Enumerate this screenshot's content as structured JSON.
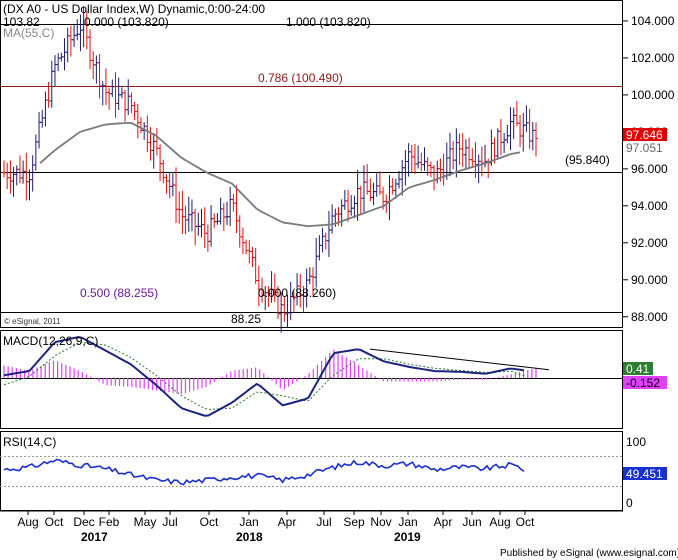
{
  "header": {
    "title": "(DX A0 - US Dollar Index,W) Dynamic,0:00-24:00",
    "top_left_value": "103.82",
    "ma_label": "MA(55,C)"
  },
  "price_panel": {
    "copyright": "© eSignal, 2011",
    "low_annotation": "88.25",
    "fib_lines": [
      {
        "label": "0.000 (103.820)",
        "value": 103.82
      },
      {
        "label": "1.000 (103.820)",
        "value": 103.82
      },
      {
        "label": "0.786 (100.490)",
        "value": 100.49
      },
      {
        "label": "0.500 (88.255)",
        "value": 88.255
      },
      {
        "label": "0.000 (88.260)",
        "value": 88.26
      }
    ],
    "support_line": {
      "label": "(95.840)",
      "value": 95.84
    },
    "last_price": "97.646",
    "ma_value": "97.051",
    "y_ticks": [
      "104.000",
      "102.000",
      "100.000",
      "98.000",
      "96.000",
      "94.000",
      "92.000",
      "90.000",
      "88.000"
    ]
  },
  "macd_panel": {
    "label": "MACD(12,26,9,C)",
    "value_macd": "0.41",
    "value_signal": "-0.152"
  },
  "rsi_panel": {
    "label": "RSI(14,C)",
    "value": "49.451",
    "y_ticks": [
      "100",
      "0"
    ]
  },
  "x_axis": {
    "months": [
      "Aug",
      "Oct",
      "Dec",
      "Feb",
      "May",
      "Jul",
      "Oct",
      "Jan",
      "Apr",
      "Jul",
      "Sep",
      "Nov",
      "Jan",
      "Apr",
      "Jun",
      "Aug",
      "Oct"
    ],
    "years": [
      "2017",
      "2018",
      "2019"
    ]
  },
  "footer": {
    "published": "Published by eSignal (www.esignal.com)"
  },
  "colors": {
    "up_bar": "#1c1c6e",
    "down_bar": "#e01010",
    "ma": "#7a7a7a",
    "fib_0786": "#8b1a1a",
    "fib_0500": "#6a1b9a",
    "macd_line": "#1a237e",
    "signal_line": "#2e7d32",
    "histogram": "#e040fb",
    "rsi_line": "#1a2fd0",
    "last_price_bg": "#e00000",
    "macd_value_bg": "#2e7d32",
    "signal_value_bg": "#e040fb",
    "rsi_value_bg": "#1a2fd0"
  },
  "chart_data": {
    "type": "line",
    "title": "(DX A0 - US Dollar Index,W) Dynamic,0:00-24:00",
    "ylim": [
      87.5,
      104.7
    ],
    "x": [
      "2016-08",
      "2016-10",
      "2016-12",
      "2017-01",
      "2017-02",
      "2017-03",
      "2017-05",
      "2017-07",
      "2017-08",
      "2017-10",
      "2018-01",
      "2018-02",
      "2018-04",
      "2018-05",
      "2018-07",
      "2018-09",
      "2018-11",
      "2019-01",
      "2019-04",
      "2019-06",
      "2019-08",
      "2019-10"
    ],
    "series": [
      {
        "name": "DX A0 - US Dollar Index",
        "values": [
          95.8,
          95.8,
          101.5,
          103.82,
          100.2,
          99.5,
          97.0,
          93.5,
          92.5,
          94.0,
          90.0,
          88.3,
          89.8,
          93.5,
          94.8,
          94.5,
          96.8,
          95.6,
          97.2,
          96.5,
          98.5,
          97.646
        ]
      },
      {
        "name": "MA(55,C)",
        "values": [
          95.3,
          95.8,
          97.0,
          98.0,
          98.4,
          98.5,
          97.8,
          96.6,
          95.8,
          95.2,
          93.8,
          93.1,
          92.9,
          93.0,
          93.5,
          94.0,
          95.0,
          95.4,
          95.9,
          96.3,
          96.8,
          97.051
        ]
      }
    ],
    "fib_levels": [
      {
        "ratio": 0.0,
        "value": 103.82
      },
      {
        "ratio": 0.786,
        "value": 100.49
      },
      {
        "ratio": 0.5,
        "value": 88.255
      },
      {
        "ratio": 1.0,
        "value": 103.82
      }
    ],
    "horizontal_support": 95.84,
    "macd": {
      "label": "MACD(12,26,9,C)",
      "ylim": [
        -3.5,
        3.2
      ],
      "macd": [
        0.2,
        0.5,
        2.6,
        3.0,
        2.0,
        1.0,
        -0.5,
        -2.2,
        -2.8,
        -1.8,
        -0.4,
        -2.0,
        -1.5,
        1.8,
        2.1,
        1.2,
        0.8,
        0.5,
        0.45,
        0.3,
        0.7,
        0.41
      ],
      "signal": [
        -0.5,
        0.1,
        1.6,
        2.6,
        2.4,
        1.5,
        0.2,
        -1.3,
        -2.3,
        -2.2,
        -1.0,
        -1.3,
        -1.7,
        0.2,
        1.4,
        1.4,
        1.0,
        0.7,
        0.55,
        0.4,
        0.5,
        -0.152
      ]
    },
    "rsi": {
      "label": "RSI(14,C)",
      "ylim": [
        0,
        100
      ],
      "reference_levels": [
        70,
        30
      ],
      "values": [
        52,
        55,
        64,
        58,
        53,
        45,
        38,
        35,
        38,
        42,
        44,
        38,
        45,
        55,
        62,
        57,
        60,
        52,
        55,
        53,
        58,
        49.451
      ]
    }
  }
}
